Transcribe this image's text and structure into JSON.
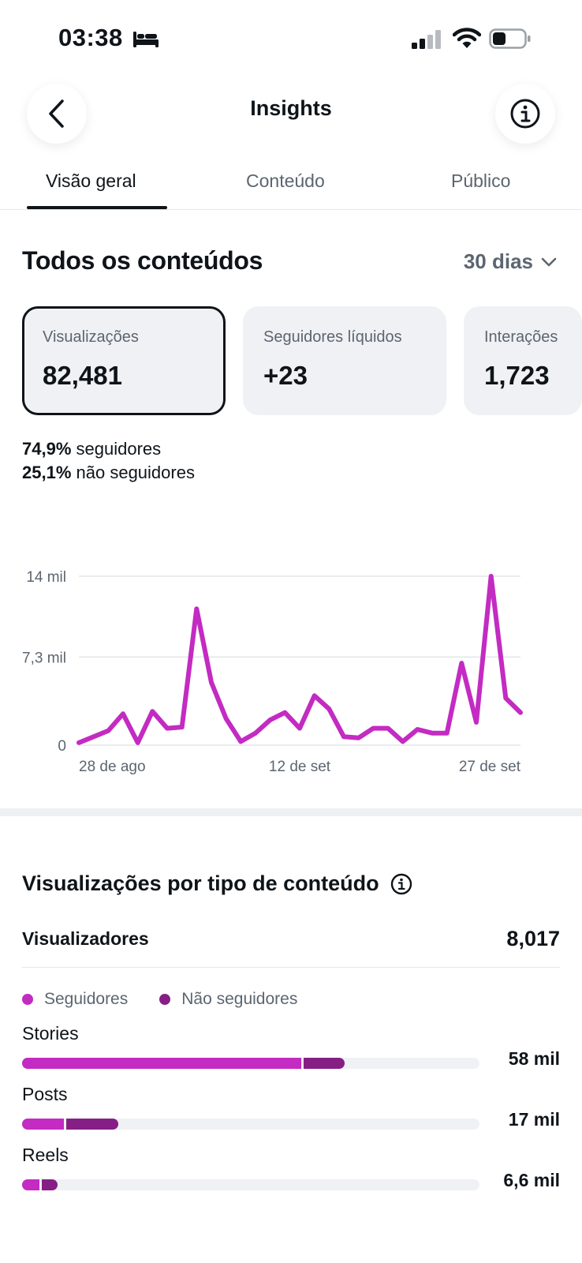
{
  "status": {
    "time": "03:38"
  },
  "header": {
    "title": "Insights"
  },
  "tabs": [
    {
      "label": "Visão geral",
      "active": true
    },
    {
      "label": "Conteúdo",
      "active": false
    },
    {
      "label": "Público",
      "active": false
    }
  ],
  "overview": {
    "title": "Todos os conteúdos",
    "period": "30 dias",
    "cards": [
      {
        "label": "Visualizações",
        "value": "82,481",
        "selected": true
      },
      {
        "label": "Seguidores líquidos",
        "value": "+23",
        "selected": false
      },
      {
        "label": "Interações",
        "value": "1,723",
        "selected": false
      }
    ],
    "split": [
      {
        "pct": "74,9%",
        "text": "seguidores"
      },
      {
        "pct": "25,1%",
        "text": "não seguidores"
      }
    ]
  },
  "chart_data": {
    "type": "line",
    "title": "",
    "xlabel": "",
    "ylabel": "",
    "ylim": [
      0,
      14000
    ],
    "yticks": [
      {
        "value": 0,
        "label": "0"
      },
      {
        "value": 7300,
        "label": "7,3 mil"
      },
      {
        "value": 14000,
        "label": "14 mil"
      }
    ],
    "xticks": [
      {
        "index": 0,
        "label": "28 de ago"
      },
      {
        "index": 15,
        "label": "12 de set"
      },
      {
        "index": 30,
        "label": "27 de set"
      }
    ],
    "grid": true,
    "color": "#c32bc2",
    "series": [
      {
        "name": "",
        "values": [
          200,
          700,
          1200,
          2600,
          200,
          2800,
          1400,
          1500,
          11300,
          5200,
          2200,
          300,
          1000,
          2100,
          2700,
          1400,
          4100,
          3000,
          700,
          600,
          1400,
          1400,
          300,
          1300,
          1000,
          1000,
          6800,
          1900,
          14000,
          3900,
          2700
        ]
      }
    ]
  },
  "content_types": {
    "title": "Visualizações por tipo de conteúdo",
    "viewers_label": "Visualizadores",
    "viewers_value": "8,017",
    "legend": [
      {
        "label": "Seguidores",
        "color": "#c32bc2"
      },
      {
        "label": "Não seguidores",
        "color": "#861f85"
      }
    ],
    "bars_max": 95,
    "bars": [
      {
        "label": "Stories",
        "value_label": "58 mil",
        "followers": 58,
        "non_followers": 9
      },
      {
        "label": "Posts",
        "value_label": "17 mil",
        "followers": 8.6,
        "non_followers": 11.4
      },
      {
        "label": "Reels",
        "value_label": "6,6 mil",
        "followers": 3.6,
        "non_followers": 3.8
      }
    ]
  }
}
